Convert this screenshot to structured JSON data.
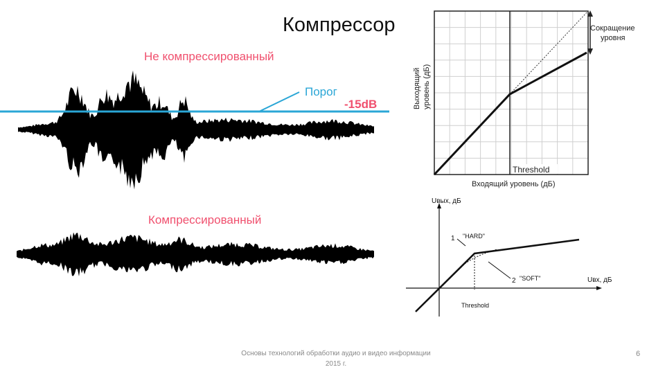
{
  "slide": {
    "title": "Компрессор",
    "footer_line1": "Основы технологий обработки аудио и видео информации",
    "footer_line2": "2015 г.",
    "page_number": "6"
  },
  "waveform": {
    "uncompressed_label": "Не компрессированный",
    "threshold_label": "Порог",
    "threshold_value": "-15dB",
    "compressed_label": "Компрессированный",
    "label_color": "#f0506e",
    "threshold_color": "#2aa6d6"
  },
  "transfer_chart": {
    "y_label_line1": "Выходящий",
    "y_label_line2": "уровень (дБ)",
    "x_label": "Входящий уровень (дБ)",
    "threshold_label": "Threshold",
    "reduction_label_line1": "Сокращение",
    "reduction_label_line2": "уровня"
  },
  "knee_chart": {
    "y_axis_label": "Uвых, дБ",
    "x_axis_label": "Uвх, дБ",
    "hard_number": "1",
    "hard_label": "\"HARD\"",
    "soft_number": "2",
    "soft_label": "\"SOFT\"",
    "threshold_label": "Threshold"
  }
}
